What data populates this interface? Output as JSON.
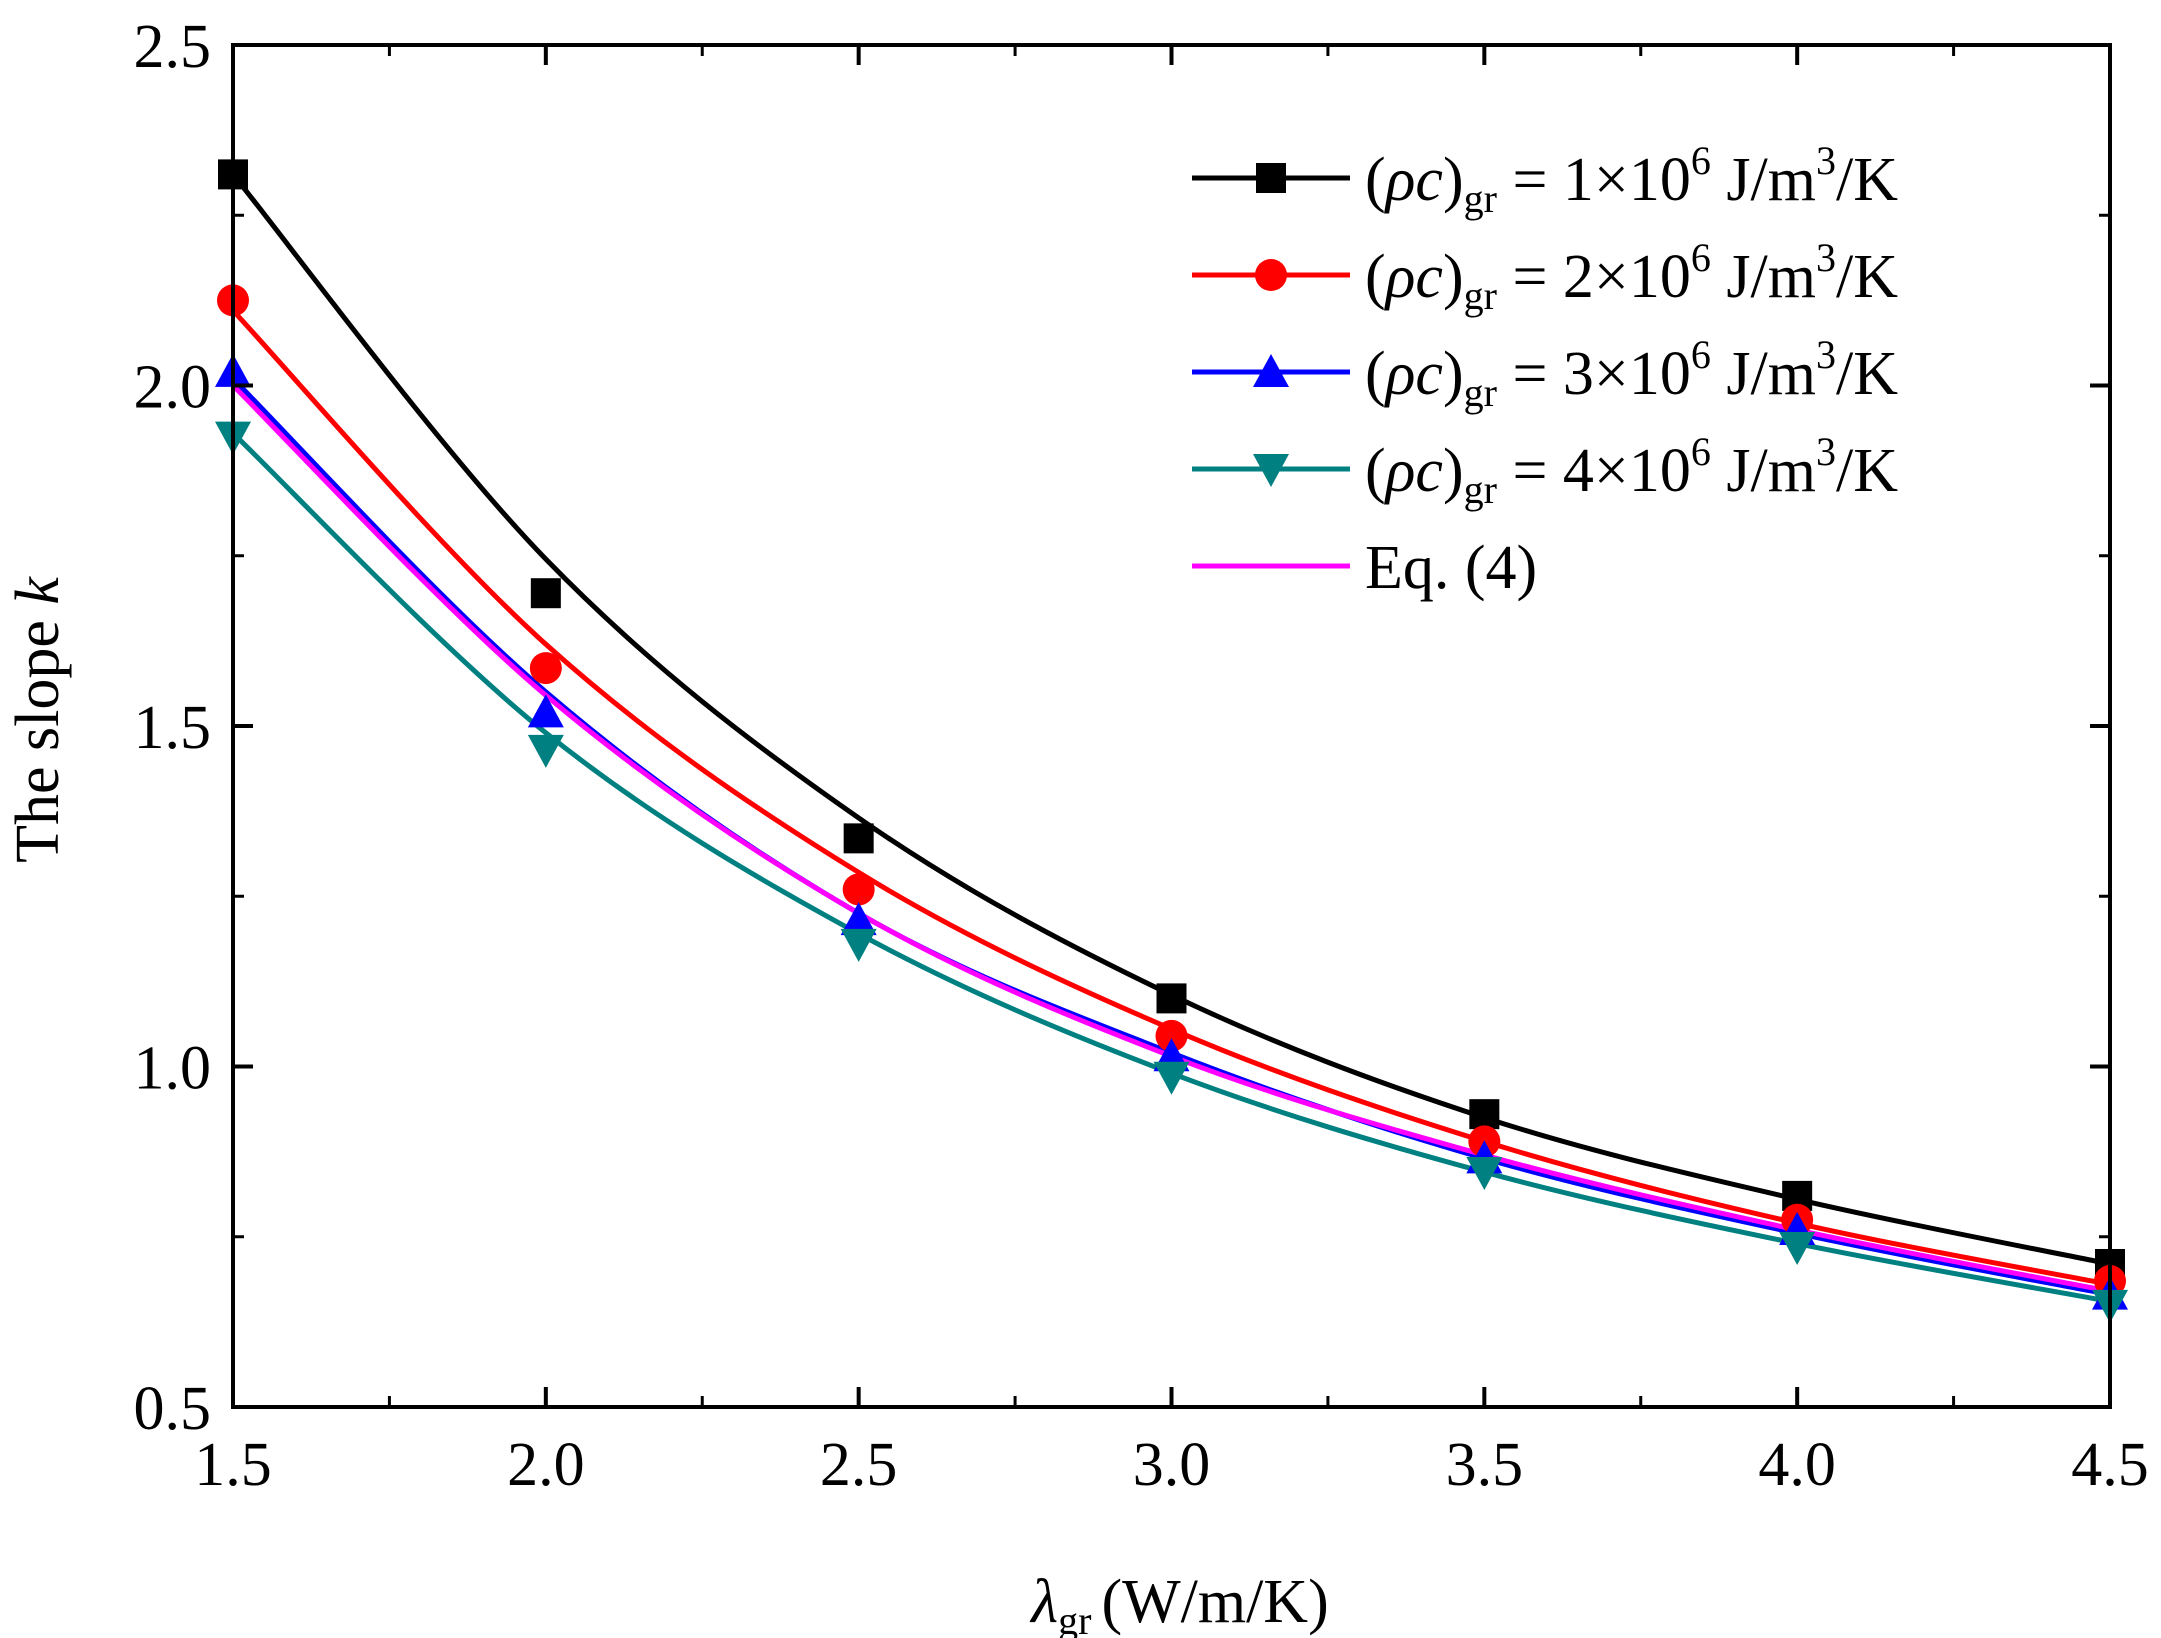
{
  "chart_data": {
    "type": "line",
    "xlabel": {
      "symbol": "λ",
      "sub": "gr",
      "unit": "(W/m/K)"
    },
    "ylabel": {
      "text": "The slope ",
      "italic": "k"
    },
    "xlim": [
      1.5,
      4.5
    ],
    "ylim": [
      0.5,
      2.5
    ],
    "xticks": [
      "1.5",
      "2.0",
      "2.5",
      "3.0",
      "3.5",
      "4.0",
      "4.5"
    ],
    "yticks": [
      "0.5",
      "1.0",
      "1.5",
      "2.0",
      "2.5"
    ],
    "x": [
      1.5,
      2.0,
      2.5,
      3.0,
      3.5,
      4.0,
      4.5
    ],
    "legend_position": "top-right",
    "series": [
      {
        "name": "(ρc)gr = 1×10^6 J/m^3/K",
        "label": {
          "pre": "(",
          "rho": "ρ",
          "c": "c",
          "close": ")",
          "sub": "gr",
          "mid": " = 1×10",
          "sup6": "6",
          "unit": " J/m",
          "sup3": "3",
          "tail": "/K"
        },
        "color": "#000000",
        "marker": "square",
        "values": [
          2.31,
          1.695,
          1.335,
          1.1,
          0.93,
          0.81,
          0.71
        ],
        "fit": [
          2.31,
          1.745,
          1.365,
          1.105,
          0.925,
          0.805,
          0.71
        ]
      },
      {
        "name": "(ρc)gr = 2×10^6 J/m^3/K",
        "label": {
          "pre": "(",
          "rho": "ρ",
          "c": "c",
          "close": ")",
          "sub": "gr",
          "mid": " = 2×10",
          "sup6": "6",
          "unit": " J/m",
          "sup3": "3",
          "tail": "/K"
        },
        "color": "#ff0000",
        "marker": "circle",
        "values": [
          2.125,
          1.585,
          1.26,
          1.045,
          0.89,
          0.775,
          0.685
        ],
        "fit": [
          2.11,
          1.62,
          1.285,
          1.055,
          0.89,
          0.77,
          0.68
        ]
      },
      {
        "name": "(ρc)gr = 3×10^6 J/m^3/K",
        "label": {
          "pre": "(",
          "rho": "ρ",
          "c": "c",
          "close": ")",
          "sub": "gr",
          "mid": " = 3×10",
          "sup6": "6",
          "unit": " J/m",
          "sup3": "3",
          "tail": "/K"
        },
        "color": "#0000ff",
        "marker": "triangle-up",
        "values": [
          2.02,
          1.52,
          1.215,
          1.015,
          0.865,
          0.76,
          0.665
        ],
        "fit": [
          2.01,
          1.55,
          1.225,
          1.02,
          0.865,
          0.755,
          0.665
        ]
      },
      {
        "name": "(ρc)gr = 4×10^6 J/m^3/K",
        "label": {
          "pre": "(",
          "rho": "ρ",
          "c": "c",
          "close": ")",
          "sub": "gr",
          "mid": " = 4×10",
          "sup6": "6",
          "unit": " J/m",
          "sup3": "3",
          "tail": "/K"
        },
        "color": "#008080",
        "marker": "triangle-down",
        "values": [
          1.925,
          1.465,
          1.18,
          0.985,
          0.845,
          0.735,
          0.65
        ],
        "fit": [
          1.93,
          1.49,
          1.195,
          0.99,
          0.845,
          0.74,
          0.655
        ]
      },
      {
        "name": "Eq. (4)",
        "label": {
          "plain": "Eq. (4)"
        },
        "color": "#ff00ff",
        "marker": "none",
        "fit": [
          2.0,
          1.545,
          1.225,
          1.015,
          0.87,
          0.76,
          0.67
        ]
      }
    ]
  }
}
